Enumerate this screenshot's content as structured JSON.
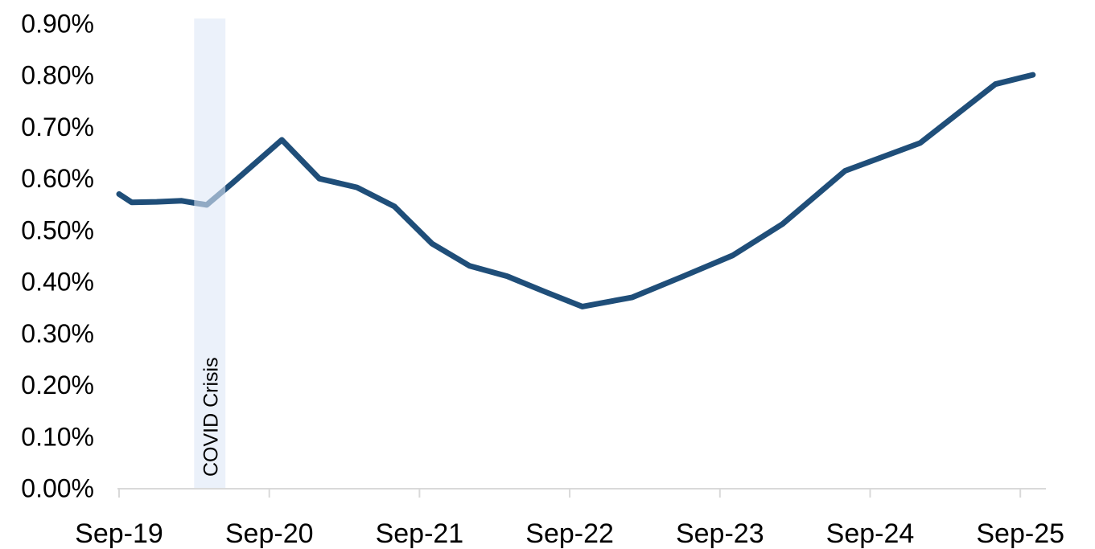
{
  "page": {
    "background": "#ffffff"
  },
  "chart_data": {
    "type": "line",
    "title": "",
    "legend": "none",
    "grid": "off",
    "x_axis": {
      "tick_labels": [
        "Sep-19",
        "Sep-20",
        "Sep-21",
        "Sep-22",
        "Sep-23",
        "Sep-24",
        "Sep-25"
      ],
      "frequency": "monthly"
    },
    "y_axis": {
      "tick_labels": [
        "0.00%",
        "0.10%",
        "0.20%",
        "0.30%",
        "0.40%",
        "0.50%",
        "0.60%",
        "0.70%",
        "0.80%",
        "0.90%"
      ],
      "min": 0.0,
      "max": 0.9,
      "unit": "percent",
      "tick_step": 0.1
    },
    "series": [
      {
        "name": "",
        "points": [
          {
            "month": "Sep-19",
            "value": 0.57
          },
          {
            "month": "Oct-19",
            "value": 0.554
          },
          {
            "month": "Dec-19",
            "value": 0.555
          },
          {
            "month": "Feb-20",
            "value": 0.557
          },
          {
            "month": "Mar-20",
            "value": 0.553
          },
          {
            "month": "Apr-20",
            "value": 0.549
          },
          {
            "month": "Jun-20",
            "value": 0.59
          },
          {
            "month": "Oct-20",
            "value": 0.675
          },
          {
            "month": "Jan-21",
            "value": 0.6
          },
          {
            "month": "Apr-21",
            "value": 0.583
          },
          {
            "month": "Jul-21",
            "value": 0.546
          },
          {
            "month": "Oct-21",
            "value": 0.474
          },
          {
            "month": "Jan-22",
            "value": 0.431
          },
          {
            "month": "Apr-22",
            "value": 0.411
          },
          {
            "month": "Jul-22",
            "value": 0.381
          },
          {
            "month": "Oct-22",
            "value": 0.352
          },
          {
            "month": "Feb-23",
            "value": 0.37
          },
          {
            "month": "Jun-23",
            "value": 0.41
          },
          {
            "month": "Oct-23",
            "value": 0.451
          },
          {
            "month": "Feb-24",
            "value": 0.512
          },
          {
            "month": "Jul-24",
            "value": 0.615
          },
          {
            "month": "Jan-25",
            "value": 0.669
          },
          {
            "month": "Jul-25",
            "value": 0.783
          },
          {
            "month": "Oct-25",
            "value": 0.801
          }
        ]
      }
    ],
    "annotations": [
      {
        "type": "vertical_band",
        "label": "COVID Crisis",
        "from_month": "Mar-20",
        "to_month": "May-20"
      }
    ],
    "colors": {
      "line": "#1F4E79",
      "band": "#DEE7F6",
      "axis": "#D9D9D9",
      "label_text": "#000000"
    }
  }
}
